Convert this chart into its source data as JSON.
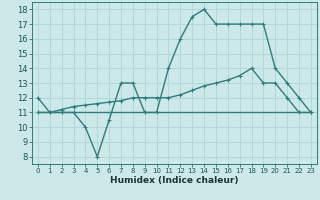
{
  "title": "",
  "xlabel": "Humidex (Indice chaleur)",
  "ylabel": "",
  "bg_color": "#cde8e8",
  "grid_color": "#b0d8d8",
  "line_color": "#2e7d7d",
  "xlim": [
    -0.5,
    23.5
  ],
  "ylim": [
    7.5,
    18.5
  ],
  "xticks": [
    0,
    1,
    2,
    3,
    4,
    5,
    6,
    7,
    8,
    9,
    10,
    11,
    12,
    13,
    14,
    15,
    16,
    17,
    18,
    19,
    20,
    21,
    22,
    23
  ],
  "yticks": [
    8,
    9,
    10,
    11,
    12,
    13,
    14,
    15,
    16,
    17,
    18
  ],
  "line1_x": [
    0,
    1,
    2,
    3,
    4,
    5,
    6,
    7,
    8,
    9,
    10,
    11,
    12,
    13,
    14,
    15,
    16,
    17,
    18,
    19,
    20,
    21,
    22,
    23
  ],
  "line1_y": [
    12,
    11,
    11,
    11,
    10,
    8,
    10.5,
    13,
    13,
    11,
    11,
    14,
    16,
    17.5,
    18,
    17,
    17,
    17,
    17,
    17,
    14,
    13,
    12,
    11
  ],
  "line2_x": [
    0,
    1,
    2,
    3,
    4,
    5,
    6,
    7,
    8,
    9,
    10,
    11,
    12,
    13,
    14,
    15,
    16,
    17,
    18,
    19,
    20,
    21,
    22,
    23
  ],
  "line2_y": [
    11,
    11,
    11.2,
    11.4,
    11.5,
    11.6,
    11.7,
    11.8,
    12,
    12,
    12,
    12,
    12.2,
    12.5,
    12.8,
    13.0,
    13.2,
    13.5,
    14,
    13,
    13,
    12,
    11,
    11
  ],
  "line3_x": [
    0,
    1,
    2,
    3,
    4,
    5,
    6,
    7,
    8,
    9,
    10,
    11,
    12,
    13,
    14,
    15,
    16,
    17,
    18,
    19,
    20,
    21,
    22,
    23
  ],
  "line3_y": [
    11,
    11,
    11,
    11,
    11,
    11,
    11,
    11,
    11,
    11,
    11,
    11,
    11,
    11,
    11,
    11,
    11,
    11,
    11,
    11,
    11,
    11,
    11,
    11
  ]
}
